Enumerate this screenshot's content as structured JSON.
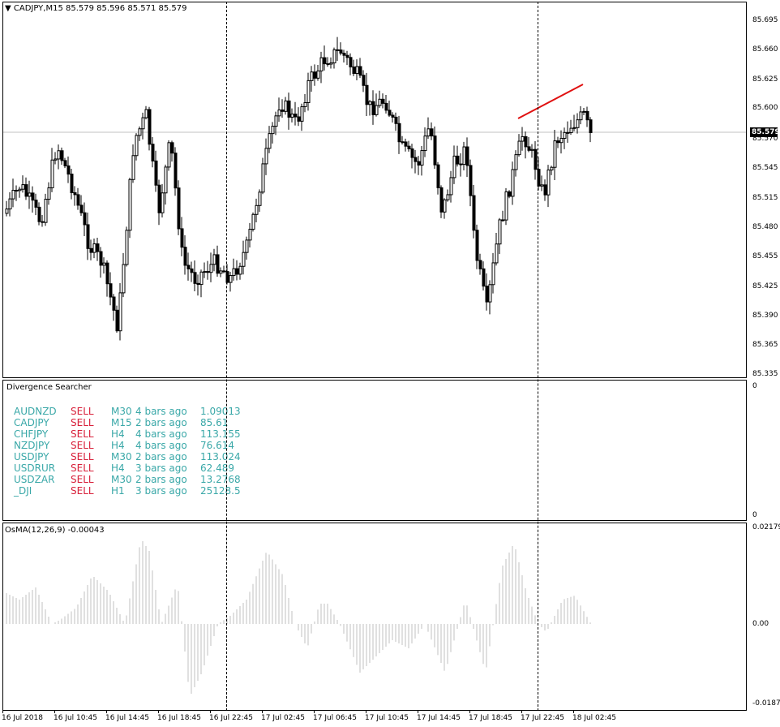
{
  "main": {
    "title": "CADJPY,M15  85.579 85.596 85.571 85.579",
    "current_price": "85.579",
    "price_ticks": [
      "85.695",
      "85.660",
      "85.625",
      "85.600",
      "85.570",
      "85.545",
      "85.515",
      "85.480",
      "85.455",
      "85.425",
      "85.390",
      "85.365",
      "85.335"
    ]
  },
  "divergence": {
    "title": "Divergence Searcher",
    "axis_top": "0",
    "axis_bottom": "0",
    "rows": [
      {
        "symbol": "AUDNZD",
        "signal": "SELL",
        "tf": "M30",
        "ago": "4 bars ago",
        "value": "1.09013"
      },
      {
        "symbol": "CADJPY",
        "signal": "SELL",
        "tf": "M15",
        "ago": "2 bars ago",
        "value": "85.61"
      },
      {
        "symbol": "CHFJPY",
        "signal": "SELL",
        "tf": "H4",
        "ago": "4 bars ago",
        "value": "113.155"
      },
      {
        "symbol": "NZDJPY",
        "signal": "SELL",
        "tf": "H4",
        "ago": "4 bars ago",
        "value": "76.614"
      },
      {
        "symbol": "USDJPY",
        "signal": "SELL",
        "tf": "M30",
        "ago": "2 bars ago",
        "value": "113.024"
      },
      {
        "symbol": "USDRUR",
        "signal": "SELL",
        "tf": "H4",
        "ago": "3 bars ago",
        "value": "62.489"
      },
      {
        "symbol": "USDZAR",
        "signal": "SELL",
        "tf": "M30",
        "ago": "2 bars ago",
        "value": "13.2768"
      },
      {
        "symbol": "_DJI",
        "signal": "SELL",
        "tf": "H1",
        "ago": "3 bars ago",
        "value": "25128.5"
      }
    ]
  },
  "osma": {
    "title": "OsMA(12,26,9) -0.00043",
    "ticks": [
      "0.02179",
      "0.00",
      "-0.0187"
    ]
  },
  "time_axis": [
    "16 Jul 2018",
    "16 Jul 10:45",
    "16 Jul 14:45",
    "16 Jul 18:45",
    "16 Jul 22:45",
    "17 Jul 02:45",
    "17 Jul 06:45",
    "17 Jul 10:45",
    "17 Jul 14:45",
    "17 Jul 18:45",
    "17 Jul 22:45",
    "18 Jul 02:45"
  ],
  "colors": {
    "bull_candle": "#000000",
    "bear_candle": "#000000",
    "divergence_line": "#e01010",
    "osma_bar": "#c0c0c0",
    "text_teal": "#3aa8a8",
    "text_red": "#d8203a"
  }
}
